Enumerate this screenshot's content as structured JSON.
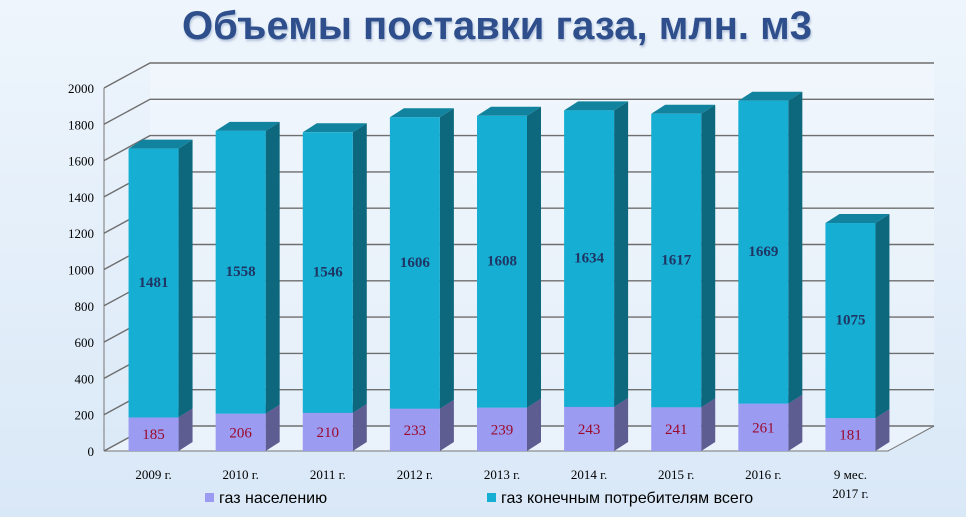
{
  "title": "Объемы поставки газа, млн. м3",
  "chart_data": {
    "type": "bar",
    "stacked": true,
    "three_d": true,
    "categories": [
      "2009 г.",
      "2010 г.",
      "2011 г.",
      "2012 г.",
      "2013 г.",
      "2014 г.",
      "2015 г.",
      "2016 г.",
      "9 мес.\n2017 г."
    ],
    "series": [
      {
        "name": "газ населению",
        "color": "#9b9bf2",
        "values": [
          185,
          206,
          210,
          233,
          239,
          243,
          241,
          261,
          181
        ]
      },
      {
        "name": "газ конечным потребителям всего",
        "color": "#16aed2",
        "values": [
          1481,
          1558,
          1546,
          1606,
          1608,
          1634,
          1617,
          1669,
          1075
        ]
      }
    ],
    "ylim": [
      0,
      2000
    ],
    "yticks": [
      0,
      200,
      400,
      600,
      800,
      1000,
      1200,
      1400,
      1600,
      1800,
      2000
    ],
    "grid": true,
    "legend_position": "bottom"
  }
}
